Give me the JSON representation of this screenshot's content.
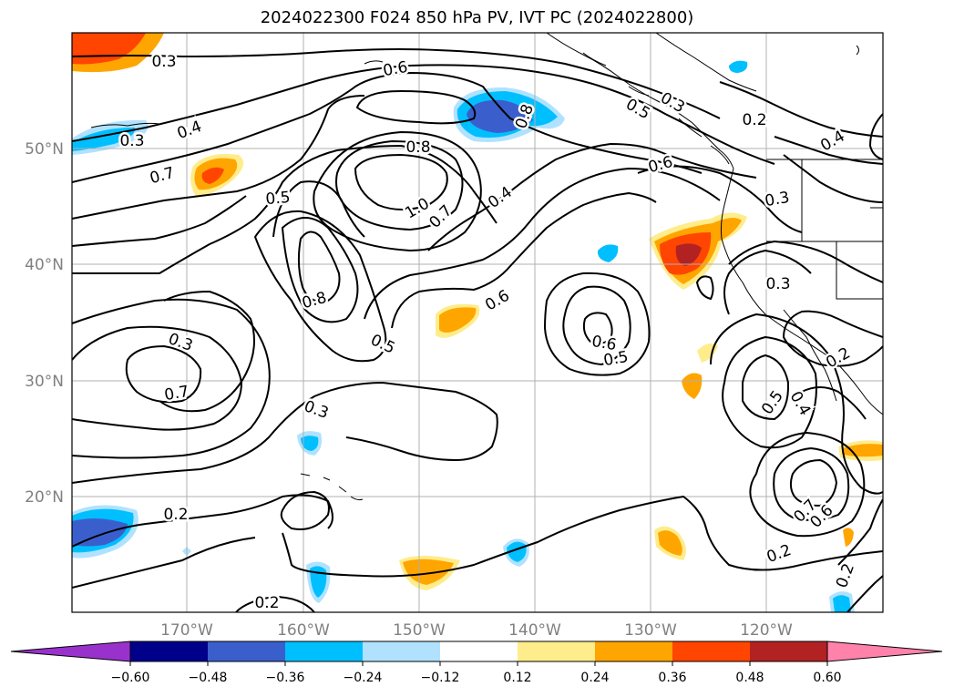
{
  "title": "2024022300 F024 850 hPa PV, IVT PC (2024022800)",
  "map": {
    "lat_labels": [
      "50°N",
      "40°N",
      "30°N",
      "20°N"
    ],
    "lon_labels": [
      "170°W",
      "160°W",
      "150°W",
      "140°W",
      "130°W",
      "120°W"
    ],
    "axis_label_color": "#808080",
    "contour_labels": [
      "0.3",
      "0.6",
      "0.4",
      "0.3",
      "0.7",
      "0.5",
      "0.8",
      "1.0",
      "0.7",
      "0.4",
      "0.8",
      "0.2",
      "0.3",
      "0.5",
      "0.3",
      "0.4",
      "0.6",
      "0.7",
      "0.8",
      "0.5",
      "0.6",
      "0.6",
      "0.5",
      "0.3",
      "0.3",
      "0.2",
      "0.5",
      "0.4",
      "0.2",
      "0.6",
      "0.7",
      "0.2",
      "0.2",
      "0.2",
      "0.3",
      "0.5",
      "0.8",
      "0.3",
      "0.6"
    ]
  },
  "colorbar": {
    "ticks": [
      "−0.60",
      "−0.48",
      "−0.36",
      "−0.24",
      "−0.12",
      "0.12",
      "0.24",
      "0.36",
      "0.48",
      "0.60"
    ],
    "colors": [
      "#9932cc",
      "#00008b",
      "#3a5fcd",
      "#00bfff",
      "#b0e2ff",
      "#ffffff",
      "#ffec8b",
      "#ffa500",
      "#ff4500",
      "#b22222",
      "#ff82ab"
    ]
  }
}
